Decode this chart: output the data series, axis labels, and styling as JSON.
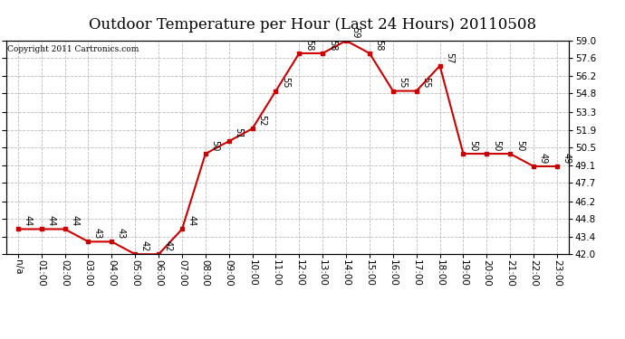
{
  "title": "Outdoor Temperature per Hour (Last 24 Hours) 20110508",
  "copyright": "Copyright 2011 Cartronics.com",
  "x_labels": [
    "n/a",
    "01:00",
    "02:00",
    "03:00",
    "04:00",
    "05:00",
    "06:00",
    "07:00",
    "08:00",
    "09:00",
    "10:00",
    "11:00",
    "12:00",
    "13:00",
    "14:00",
    "15:00",
    "16:00",
    "17:00",
    "18:00",
    "19:00",
    "20:00",
    "21:00",
    "22:00",
    "23:00"
  ],
  "y_values": [
    44,
    44,
    44,
    43,
    43,
    42,
    42,
    44,
    50,
    51,
    52,
    55,
    58,
    58,
    59,
    58,
    55,
    55,
    57,
    50,
    50,
    50,
    49,
    49
  ],
  "ylim": [
    42.0,
    59.0
  ],
  "yticks": [
    42.0,
    43.4,
    44.8,
    46.2,
    47.7,
    49.1,
    50.5,
    51.9,
    53.3,
    54.8,
    56.2,
    57.6,
    59.0
  ],
  "line_color": "#cc0000",
  "marker_color": "#cc0000",
  "bg_color": "#ffffff",
  "grid_color": "#bbbbbb",
  "title_fontsize": 12,
  "label_fontsize": 7.5,
  "annot_fontsize": 7.0
}
